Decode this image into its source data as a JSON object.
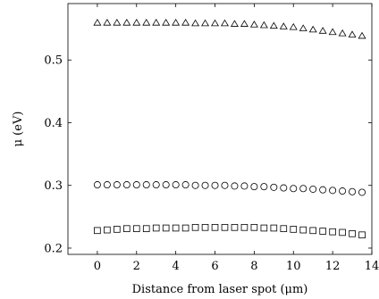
{
  "chart_data": {
    "type": "scatter",
    "xlabel": "Distance from laser spot (μm)",
    "ylabel": "μ (eV)",
    "xlim": [
      -1.5,
      14
    ],
    "ylim": [
      0.19,
      0.59
    ],
    "xticks": [
      0,
      2,
      4,
      6,
      8,
      10,
      12,
      14
    ],
    "yticks": [
      0.2,
      0.3,
      0.4,
      0.5
    ],
    "ytick_labels": [
      "0.2",
      "0.3",
      "0.4",
      "0.5"
    ],
    "grid": false,
    "legend": "none",
    "x": [
      0,
      0.5,
      1,
      1.5,
      2,
      2.5,
      3,
      3.5,
      4,
      4.5,
      5,
      5.5,
      6,
      6.5,
      7,
      7.5,
      8,
      8.5,
      9,
      9.5,
      10,
      10.5,
      11,
      11.5,
      12,
      12.5,
      13,
      13.5
    ],
    "series": [
      {
        "marker": "triangle",
        "values": [
          0.559,
          0.559,
          0.559,
          0.559,
          0.559,
          0.559,
          0.559,
          0.559,
          0.559,
          0.559,
          0.558,
          0.558,
          0.558,
          0.558,
          0.557,
          0.557,
          0.556,
          0.555,
          0.554,
          0.553,
          0.552,
          0.55,
          0.548,
          0.546,
          0.544,
          0.542,
          0.54,
          0.538
        ]
      },
      {
        "marker": "circle",
        "values": [
          0.301,
          0.301,
          0.301,
          0.301,
          0.301,
          0.301,
          0.301,
          0.301,
          0.301,
          0.301,
          0.3,
          0.3,
          0.3,
          0.3,
          0.299,
          0.299,
          0.298,
          0.298,
          0.297,
          0.296,
          0.295,
          0.295,
          0.294,
          0.293,
          0.292,
          0.291,
          0.29,
          0.289
        ]
      },
      {
        "marker": "square",
        "values": [
          0.228,
          0.229,
          0.23,
          0.231,
          0.231,
          0.231,
          0.232,
          0.232,
          0.232,
          0.232,
          0.233,
          0.233,
          0.233,
          0.233,
          0.233,
          0.233,
          0.233,
          0.232,
          0.232,
          0.231,
          0.23,
          0.229,
          0.228,
          0.227,
          0.226,
          0.225,
          0.223,
          0.221
        ]
      }
    ]
  }
}
